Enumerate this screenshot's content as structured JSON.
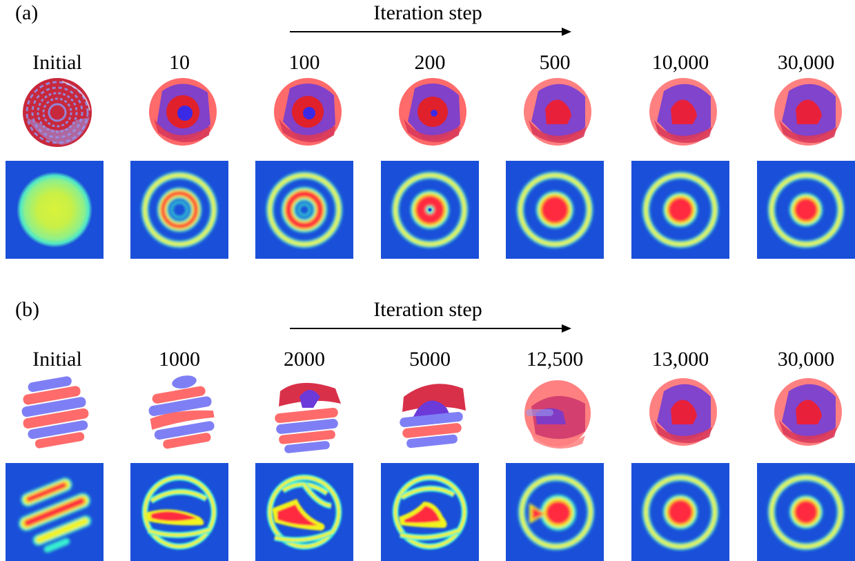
{
  "panel_a": {
    "label": "(a)",
    "arrow_label": "Iteration step",
    "steps": [
      "Initial",
      "10",
      "100",
      "200",
      "500",
      "10,000",
      "30,000"
    ]
  },
  "panel_b": {
    "label": "(b)",
    "arrow_label": "Iteration step",
    "steps": [
      "Initial",
      "1000",
      "2000",
      "5000",
      "12,500",
      "13,000",
      "30,000"
    ]
  },
  "colors": {
    "background_slice": "#1a4fd9",
    "red_phase": "#ff2a3f",
    "yellow_ring": "#f2f21a",
    "cyan_edge": "#39f0d0",
    "blue_phase_3d": "#5a5aff",
    "red_phase_3d": "#ff5a5a"
  }
}
